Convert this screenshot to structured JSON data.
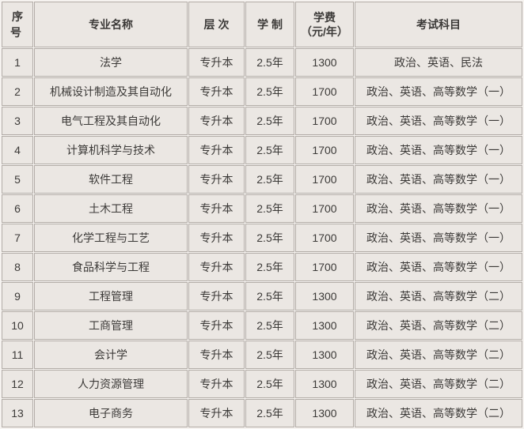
{
  "colors": {
    "page_background": "#f6f3f0",
    "cell_background": "#ebe7e3",
    "border": "#b2aca7",
    "text": "#3c3a38"
  },
  "table": {
    "column_keys": [
      "index",
      "major",
      "level",
      "duration",
      "tuition",
      "subjects"
    ],
    "headers": {
      "index": "序号",
      "major": "专业名称",
      "level": "层次",
      "duration": "学制",
      "tuition": "学费\n（元/年）",
      "subjects": "考试科目"
    },
    "rows": [
      {
        "index": "1",
        "major": "法学",
        "level": "专升本",
        "duration": "2.5年",
        "tuition": "1300",
        "subjects": "政治、英语、民法"
      },
      {
        "index": "2",
        "major": "机械设计制造及其自动化",
        "level": "专升本",
        "duration": "2.5年",
        "tuition": "1700",
        "subjects": "政治、英语、高等数学（一）"
      },
      {
        "index": "3",
        "major": "电气工程及其自动化",
        "level": "专升本",
        "duration": "2.5年",
        "tuition": "1700",
        "subjects": "政治、英语、高等数学（一）"
      },
      {
        "index": "4",
        "major": "计算机科学与技术",
        "level": "专升本",
        "duration": "2.5年",
        "tuition": "1700",
        "subjects": "政治、英语、高等数学（一）"
      },
      {
        "index": "5",
        "major": "软件工程",
        "level": "专升本",
        "duration": "2.5年",
        "tuition": "1700",
        "subjects": "政治、英语、高等数学（一）"
      },
      {
        "index": "6",
        "major": "土木工程",
        "level": "专升本",
        "duration": "2.5年",
        "tuition": "1700",
        "subjects": "政治、英语、高等数学（一）"
      },
      {
        "index": "7",
        "major": "化学工程与工艺",
        "level": "专升本",
        "duration": "2.5年",
        "tuition": "1700",
        "subjects": "政治、英语、高等数学（一）"
      },
      {
        "index": "8",
        "major": "食品科学与工程",
        "level": "专升本",
        "duration": "2.5年",
        "tuition": "1700",
        "subjects": "政治、英语、高等数学（一）"
      },
      {
        "index": "9",
        "major": "工程管理",
        "level": "专升本",
        "duration": "2.5年",
        "tuition": "1300",
        "subjects": "政治、英语、高等数学（二）"
      },
      {
        "index": "10",
        "major": "工商管理",
        "level": "专升本",
        "duration": "2.5年",
        "tuition": "1300",
        "subjects": "政治、英语、高等数学（二）"
      },
      {
        "index": "11",
        "major": "会计学",
        "level": "专升本",
        "duration": "2.5年",
        "tuition": "1300",
        "subjects": "政治、英语、高等数学（二）"
      },
      {
        "index": "12",
        "major": "人力资源管理",
        "level": "专升本",
        "duration": "2.5年",
        "tuition": "1300",
        "subjects": "政治、英语、高等数学（二）"
      },
      {
        "index": "13",
        "major": "电子商务",
        "level": "专升本",
        "duration": "2.5年",
        "tuition": "1300",
        "subjects": "政治、英语、高等数学（二）"
      }
    ]
  }
}
